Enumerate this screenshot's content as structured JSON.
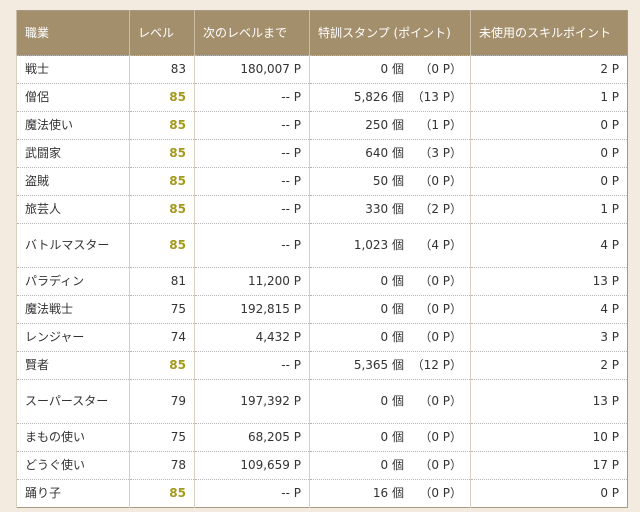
{
  "headers": [
    "職業",
    "レベル",
    "次のレベルまで",
    "特訓スタンプ (ポイント)",
    "未使用のスキルポイント"
  ],
  "colors": {
    "header_bg": "#a38f6c",
    "max_level": "#a39a1c",
    "background": "#f3ebdf"
  },
  "rows": [
    {
      "job": "戦士",
      "level": "83",
      "max": false,
      "next": "180,007 P",
      "stamps": "0 個",
      "stamp_points": "（0 P）",
      "skill": "2 P"
    },
    {
      "job": "僧侶",
      "level": "85",
      "max": true,
      "next": "-- P",
      "stamps": "5,826 個",
      "stamp_points": "（13 P）",
      "skill": "1 P"
    },
    {
      "job": "魔法使い",
      "level": "85",
      "max": true,
      "next": "-- P",
      "stamps": "250 個",
      "stamp_points": "（1 P）",
      "skill": "0 P"
    },
    {
      "job": "武闘家",
      "level": "85",
      "max": true,
      "next": "-- P",
      "stamps": "640 個",
      "stamp_points": "（3 P）",
      "skill": "0 P"
    },
    {
      "job": "盗賊",
      "level": "85",
      "max": true,
      "next": "-- P",
      "stamps": "50 個",
      "stamp_points": "（0 P）",
      "skill": "0 P"
    },
    {
      "job": "旅芸人",
      "level": "85",
      "max": true,
      "next": "-- P",
      "stamps": "330 個",
      "stamp_points": "（2 P）",
      "skill": "1 P"
    },
    {
      "job": "バトルマスター",
      "level": "85",
      "max": true,
      "next": "-- P",
      "stamps": "1,023 個",
      "stamp_points": "（4 P）",
      "skill": "4 P"
    },
    {
      "job": "パラディン",
      "level": "81",
      "max": false,
      "next": "11,200 P",
      "stamps": "0 個",
      "stamp_points": "（0 P）",
      "skill": "13 P"
    },
    {
      "job": "魔法戦士",
      "level": "75",
      "max": false,
      "next": "192,815 P",
      "stamps": "0 個",
      "stamp_points": "（0 P）",
      "skill": "4 P"
    },
    {
      "job": "レンジャー",
      "level": "74",
      "max": false,
      "next": "4,432 P",
      "stamps": "0 個",
      "stamp_points": "（0 P）",
      "skill": "3 P"
    },
    {
      "job": "賢者",
      "level": "85",
      "max": true,
      "next": "-- P",
      "stamps": "5,365 個",
      "stamp_points": "（12 P）",
      "skill": "2 P"
    },
    {
      "job": "スーパースター",
      "level": "79",
      "max": false,
      "next": "197,392 P",
      "stamps": "0 個",
      "stamp_points": "（0 P）",
      "skill": "13 P"
    },
    {
      "job": "まもの使い",
      "level": "75",
      "max": false,
      "next": "68,205 P",
      "stamps": "0 個",
      "stamp_points": "（0 P）",
      "skill": "10 P"
    },
    {
      "job": "どうぐ使い",
      "level": "78",
      "max": false,
      "next": "109,659 P",
      "stamps": "0 個",
      "stamp_points": "（0 P）",
      "skill": "17 P"
    },
    {
      "job": "踊り子",
      "level": "85",
      "max": true,
      "next": "-- P",
      "stamps": "16 個",
      "stamp_points": "（0 P）",
      "skill": "0 P"
    }
  ]
}
